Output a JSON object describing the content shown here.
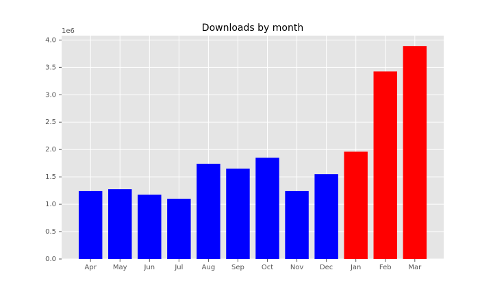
{
  "chart_data": {
    "type": "bar",
    "title": "Downloads by month",
    "categories": [
      "Apr",
      "May",
      "Jun",
      "Jul",
      "Aug",
      "Sep",
      "Oct",
      "Nov",
      "Dec",
      "Jan",
      "Feb",
      "Mar"
    ],
    "values": [
      1.24,
      1.275,
      1.175,
      1.1,
      1.74,
      1.65,
      1.85,
      1.24,
      1.55,
      1.96,
      3.425,
      3.89
    ],
    "colors": [
      "#0000ff",
      "#0000ff",
      "#0000ff",
      "#0000ff",
      "#0000ff",
      "#0000ff",
      "#0000ff",
      "#0000ff",
      "#0000ff",
      "#ff0000",
      "#ff0000",
      "#ff0000"
    ],
    "y_offset_label": "1e6",
    "ylim": [
      0,
      4.08
    ],
    "yticks": [
      {
        "value": 0,
        "label": "0.0"
      },
      0.5,
      {
        "value": 1,
        "label": "1.0"
      },
      1.5,
      {
        "value": 2,
        "label": "2.0"
      },
      2.5,
      {
        "value": 3,
        "label": "3.0"
      },
      3.5,
      {
        "value": 4,
        "label": "4.0"
      }
    ],
    "grid": true
  }
}
